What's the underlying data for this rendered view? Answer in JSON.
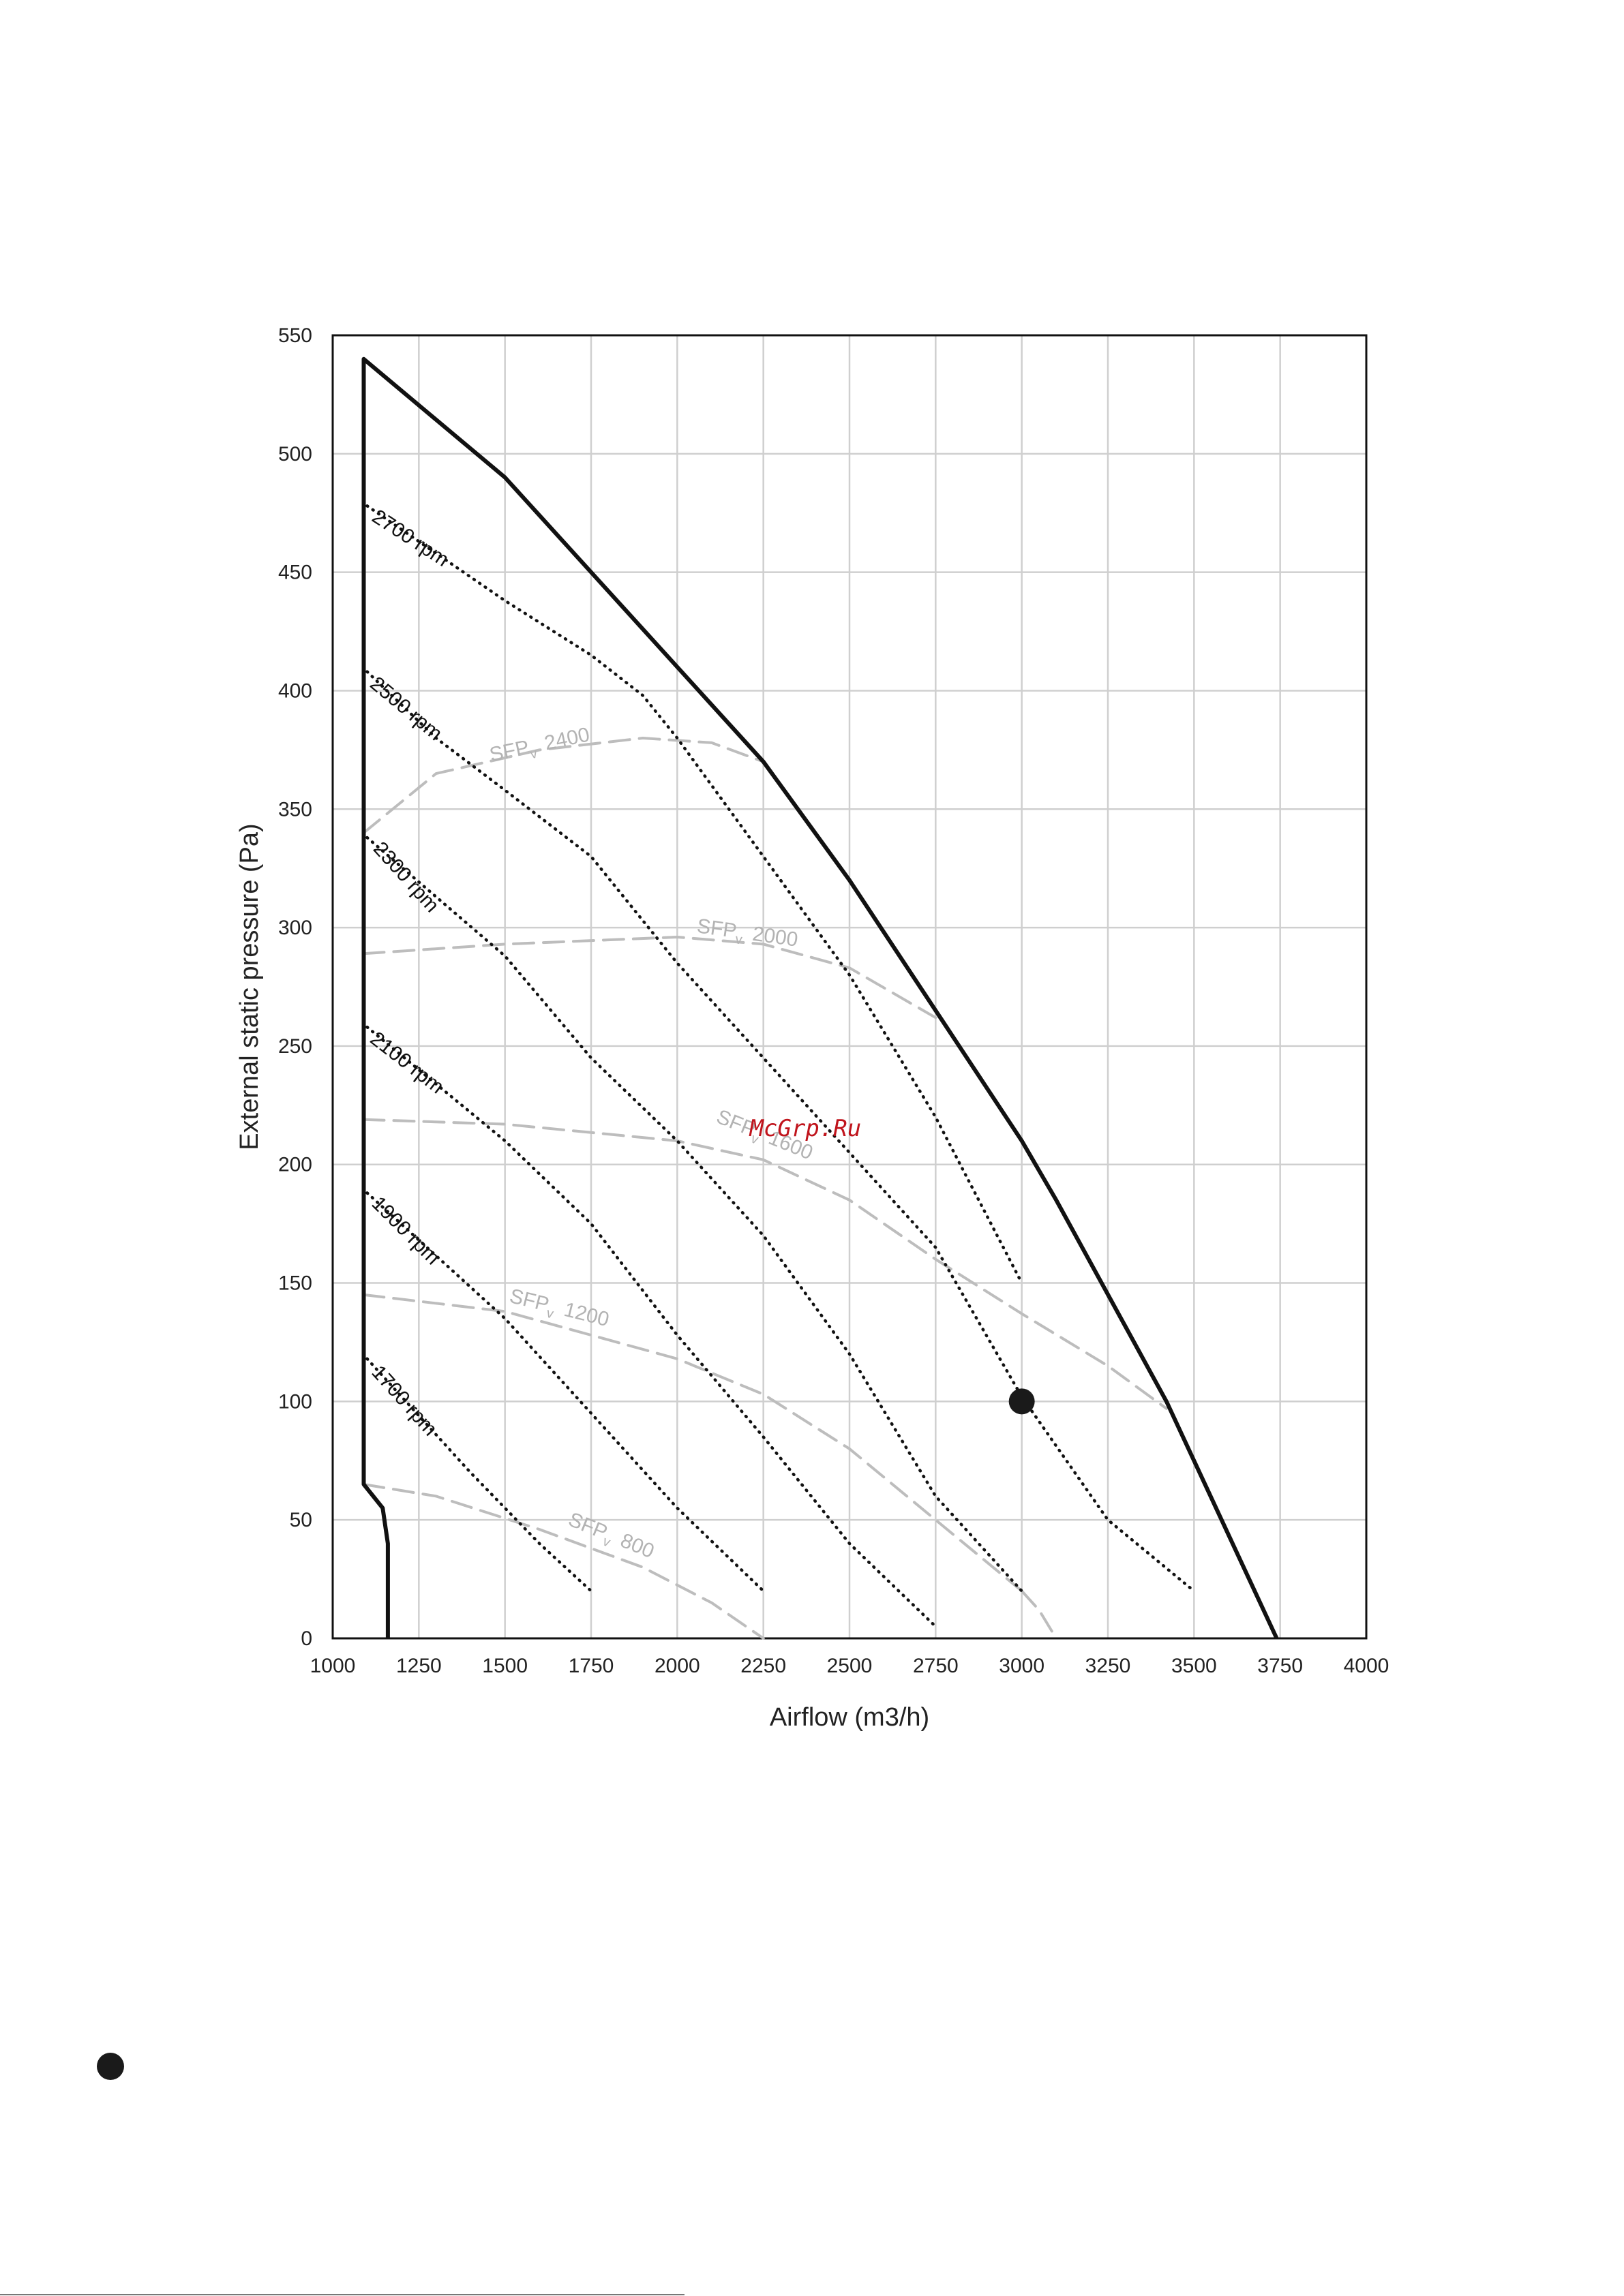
{
  "chart_data": {
    "type": "line",
    "title": "",
    "xlabel": "Airflow (m3/h)",
    "ylabel": "External static pressure  (Pa)",
    "xlim": [
      1000,
      4000
    ],
    "ylim": [
      0,
      550
    ],
    "xticks": [
      1000,
      1250,
      1500,
      1750,
      2000,
      2250,
      2500,
      2750,
      3000,
      3250,
      3500,
      3750,
      4000
    ],
    "yticks": [
      0,
      50,
      100,
      150,
      200,
      250,
      300,
      350,
      400,
      450,
      500,
      550
    ],
    "grid": true,
    "envelope": {
      "name": "",
      "style": "solid",
      "color": "#111111",
      "points": [
        [
          1160,
          0
        ],
        [
          1160,
          40
        ],
        [
          1145,
          55
        ],
        [
          1090,
          65
        ],
        [
          1090,
          540
        ],
        [
          1500,
          490
        ],
        [
          2250,
          370
        ],
        [
          2500,
          320
        ],
        [
          3000,
          210
        ],
        [
          3100,
          185
        ],
        [
          3420,
          100
        ],
        [
          3740,
          0
        ]
      ]
    },
    "rpm_series": [
      {
        "name": "2700 rpm",
        "style": "dotted",
        "color": "#111111",
        "points": [
          [
            1100,
            478
          ],
          [
            1500,
            438
          ],
          [
            1750,
            415
          ],
          [
            1900,
            398
          ],
          [
            2000,
            380
          ],
          [
            2250,
            330
          ],
          [
            2500,
            280
          ],
          [
            2750,
            220
          ],
          [
            3000,
            150
          ]
        ]
      },
      {
        "name": "2500 rpm",
        "style": "dotted",
        "color": "#111111",
        "points": [
          [
            1100,
            408
          ],
          [
            1300,
            380
          ],
          [
            1500,
            358
          ],
          [
            1750,
            330
          ],
          [
            2000,
            285
          ],
          [
            2250,
            245
          ],
          [
            2500,
            205
          ],
          [
            2750,
            165
          ],
          [
            3000,
            102
          ],
          [
            3250,
            50
          ],
          [
            3500,
            20
          ]
        ]
      },
      {
        "name": "2300 rpm",
        "style": "dotted",
        "color": "#111111",
        "points": [
          [
            1100,
            338
          ],
          [
            1500,
            288
          ],
          [
            1750,
            245
          ],
          [
            2000,
            210
          ],
          [
            2250,
            170
          ],
          [
            2500,
            120
          ],
          [
            2750,
            60
          ],
          [
            3000,
            20
          ]
        ]
      },
      {
        "name": "2100 rpm",
        "style": "dotted",
        "color": "#111111",
        "points": [
          [
            1100,
            258
          ],
          [
            1500,
            210
          ],
          [
            1750,
            175
          ],
          [
            2000,
            128
          ],
          [
            2250,
            85
          ],
          [
            2500,
            40
          ],
          [
            2750,
            5
          ]
        ]
      },
      {
        "name": "1900 rpm",
        "style": "dotted",
        "color": "#111111",
        "points": [
          [
            1100,
            188
          ],
          [
            1500,
            135
          ],
          [
            1750,
            95
          ],
          [
            2000,
            55
          ],
          [
            2250,
            20
          ]
        ]
      },
      {
        "name": "1700 rpm",
        "style": "dotted",
        "color": "#111111",
        "points": [
          [
            1100,
            118
          ],
          [
            1400,
            70
          ],
          [
            1600,
            40
          ],
          [
            1750,
            20
          ]
        ]
      }
    ],
    "sfp_series": [
      {
        "name": "SFP",
        "sub": "v",
        "value": "2400",
        "style": "dashed",
        "color": "#bdbdbd",
        "points": [
          [
            1090,
            340
          ],
          [
            1300,
            365
          ],
          [
            1600,
            375
          ],
          [
            1900,
            380
          ],
          [
            2100,
            378
          ],
          [
            2250,
            370
          ]
        ]
      },
      {
        "name": "SFP",
        "sub": "v",
        "value": "2000",
        "style": "dashed",
        "color": "#bdbdbd",
        "points": [
          [
            1090,
            289
          ],
          [
            1500,
            293
          ],
          [
            2000,
            296
          ],
          [
            2250,
            293
          ],
          [
            2500,
            283
          ],
          [
            2750,
            262
          ]
        ]
      },
      {
        "name": "SFP",
        "sub": "v",
        "value": "1600",
        "style": "dashed",
        "color": "#bdbdbd",
        "points": [
          [
            1090,
            219
          ],
          [
            1500,
            217
          ],
          [
            2000,
            210
          ],
          [
            2250,
            202
          ],
          [
            2500,
            185
          ],
          [
            2750,
            160
          ],
          [
            3000,
            137
          ],
          [
            3250,
            115
          ],
          [
            3420,
            97
          ]
        ]
      },
      {
        "name": "SFP",
        "sub": "v",
        "value": "1200",
        "style": "dashed",
        "color": "#bdbdbd",
        "points": [
          [
            1090,
            145
          ],
          [
            1500,
            138
          ],
          [
            2000,
            118
          ],
          [
            2250,
            103
          ],
          [
            2500,
            80
          ],
          [
            2750,
            50
          ],
          [
            3000,
            20
          ]
        ]
      },
      {
        "name": "SFP",
        "sub": "v",
        "value": "800",
        "style": "dashed",
        "color": "#bdbdbd",
        "points": [
          [
            1090,
            65
          ],
          [
            1300,
            60
          ],
          [
            1600,
            46
          ],
          [
            1900,
            30
          ],
          [
            2100,
            15
          ],
          [
            2250,
            0
          ]
        ]
      },
      {
        "name": "",
        "sub": "",
        "value": "",
        "style": "dashed",
        "color": "#bdbdbd",
        "points": [
          [
            3000,
            20
          ],
          [
            3050,
            12
          ],
          [
            3100,
            0
          ]
        ]
      }
    ],
    "operating_point": {
      "x": 3000,
      "y": 100
    },
    "watermark": "McGrp.Ru"
  }
}
